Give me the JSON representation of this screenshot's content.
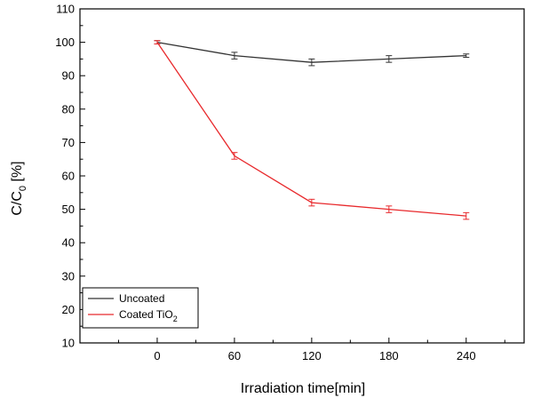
{
  "chart_data": {
    "type": "line",
    "x": [
      0,
      60,
      120,
      180,
      240
    ],
    "series": [
      {
        "name": "Uncoated",
        "values": [
          100,
          96,
          94,
          95,
          96
        ],
        "errors": [
          0.5,
          1.0,
          1.0,
          1.0,
          0.5
        ],
        "color": "#333333"
      },
      {
        "name_main": "Coated TiO",
        "name_sub": "2",
        "values": [
          100,
          66,
          52,
          50,
          48
        ],
        "errors": [
          0.5,
          1.0,
          1.0,
          1.0,
          1.0
        ],
        "color": "#e8292c"
      }
    ],
    "xlabel": "Irradiation time[min]",
    "ylabel_parts": {
      "main": "C/C",
      "sub": "0",
      "rest": " [%]"
    },
    "xlim": [
      -60,
      285
    ],
    "ylim": [
      10,
      110
    ],
    "xticks": [
      0,
      60,
      120,
      180,
      240
    ],
    "yticks": [
      10,
      20,
      30,
      40,
      50,
      60,
      70,
      80,
      90,
      100,
      110
    ],
    "grid": false,
    "legend_position": "bottom-left"
  }
}
